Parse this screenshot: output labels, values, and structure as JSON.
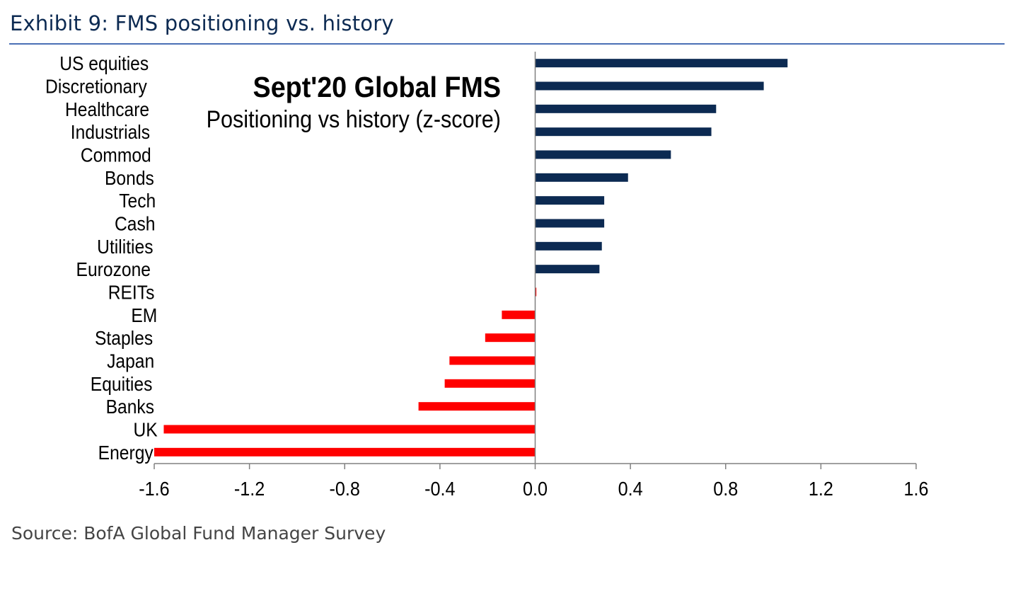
{
  "header": {
    "title": "Exhibit 9: FMS positioning vs. history"
  },
  "footer": {
    "source": "Source: BofA Global Fund Manager Survey"
  },
  "chart_data": {
    "type": "bar",
    "orientation": "horizontal",
    "title": "Sept'20 Global FMS",
    "subtitle": "Positioning vs history (z-score)",
    "categories": [
      "US equities",
      "Discretionary",
      "Healthcare",
      "Industrials",
      "Commod",
      "Bonds",
      "Tech",
      "Cash",
      "Utilities",
      "Eurozone",
      "REITs",
      "EM",
      "Staples",
      "Japan",
      "Equities",
      "Banks",
      "UK",
      "Energy"
    ],
    "values": [
      1.06,
      0.96,
      0.76,
      0.74,
      0.57,
      0.39,
      0.29,
      0.29,
      0.28,
      0.27,
      0.005,
      -0.14,
      -0.21,
      -0.36,
      -0.38,
      -0.49,
      -1.56,
      -1.6
    ],
    "xlim": [
      -1.6,
      1.6
    ],
    "xticks": [
      "-1.6",
      "-1.2",
      "-0.8",
      "-0.4",
      "0.0",
      "0.4",
      "0.8",
      "1.2",
      "1.6"
    ],
    "grid": false,
    "colors": {
      "positive": "#0c2a52",
      "negative": "#ff0000",
      "axis": "#808080"
    }
  }
}
